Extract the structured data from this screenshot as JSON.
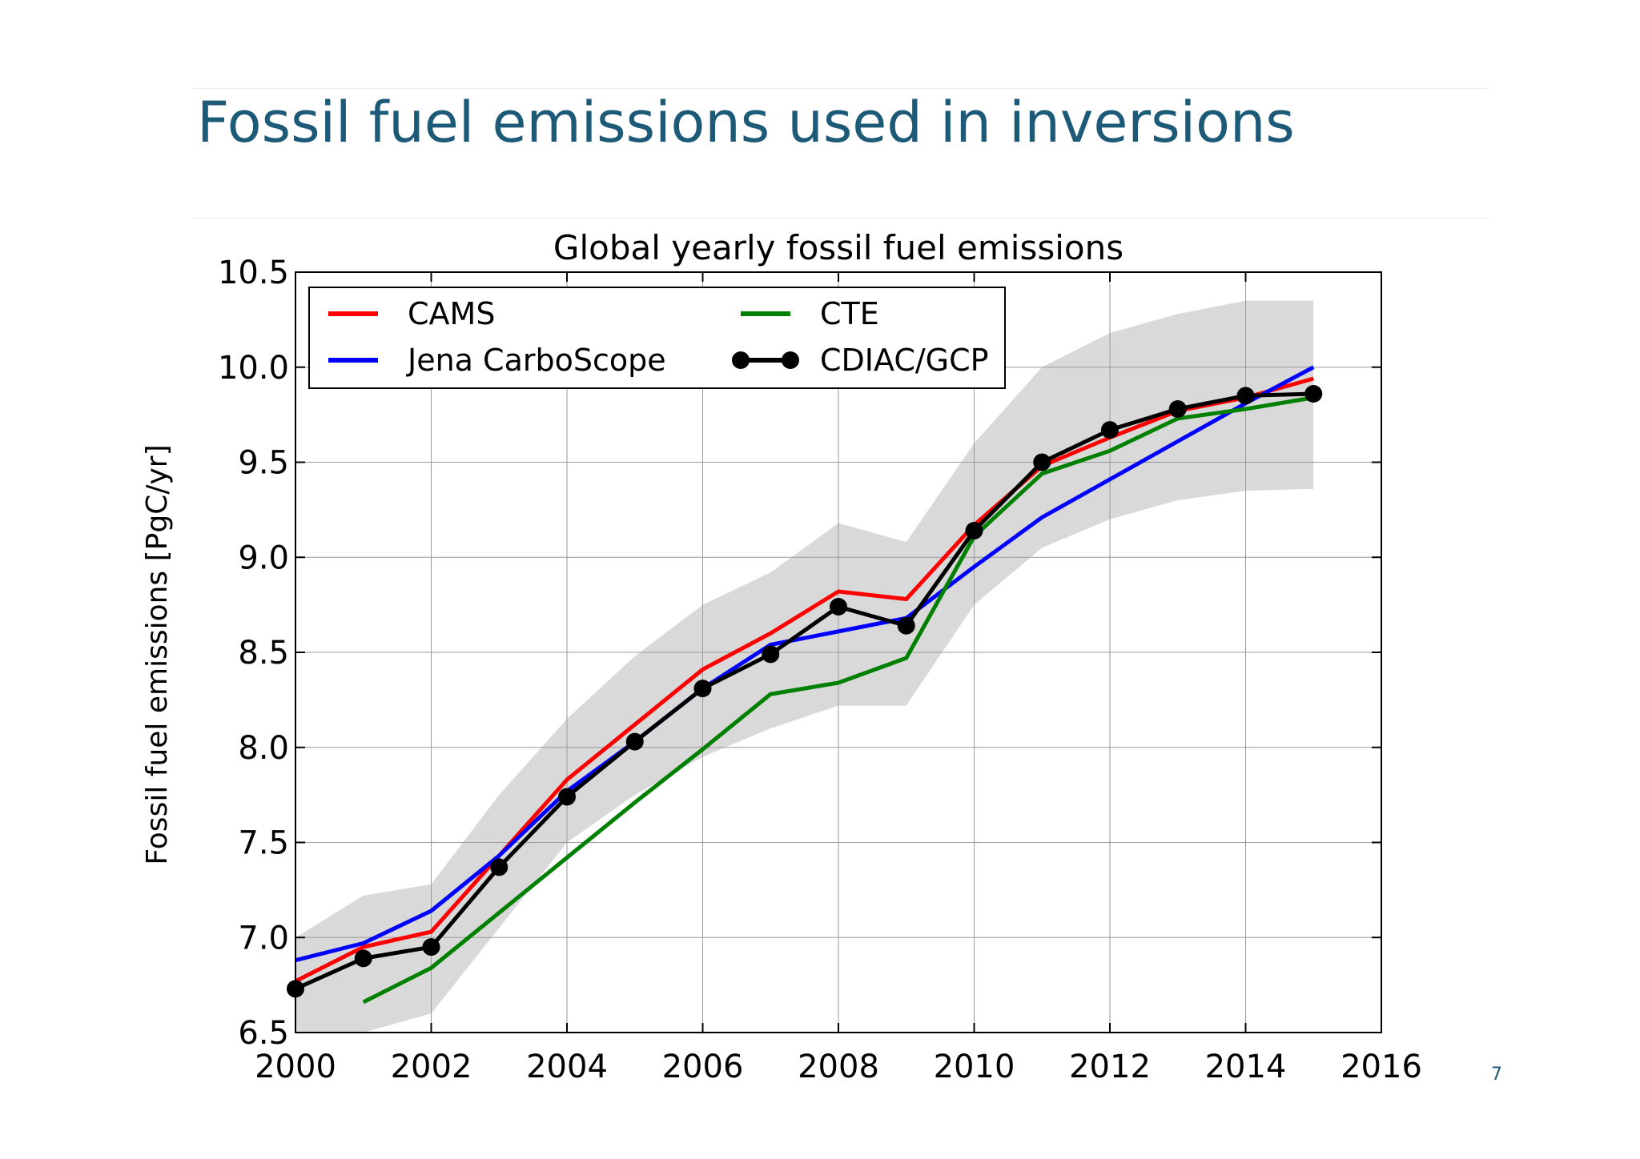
{
  "slide": {
    "title": "Fossil fuel emissions used in inversions",
    "page_number": "7"
  },
  "chart_data": {
    "type": "line",
    "title": "Global yearly fossil fuel emissions",
    "xlabel": "",
    "ylabel": "Fossil fuel emissions [PgC/yr]",
    "xlim": [
      2000,
      2016
    ],
    "ylim": [
      6.5,
      10.5
    ],
    "xticks": [
      2000,
      2002,
      2004,
      2006,
      2008,
      2010,
      2012,
      2014,
      2016
    ],
    "yticks": [
      6.5,
      7.0,
      7.5,
      8.0,
      8.5,
      9.0,
      9.5,
      10.0,
      10.5
    ],
    "ytick_labels": [
      "6.5",
      "7.0",
      "7.5",
      "8.0",
      "8.5",
      "9.0",
      "9.5",
      "10.0",
      "10.5"
    ],
    "grid": true,
    "legend_position": "top-left",
    "uncertainty_band": {
      "color": "#d9d9d9",
      "x": [
        2000,
        2001,
        2002,
        2003,
        2004,
        2005,
        2006,
        2007,
        2008,
        2009,
        2010,
        2011,
        2012,
        2013,
        2014,
        2015
      ],
      "lower": [
        6.5,
        6.5,
        6.6,
        7.05,
        7.5,
        7.75,
        7.95,
        8.1,
        8.22,
        8.22,
        8.75,
        9.05,
        9.2,
        9.3,
        9.35,
        9.36
      ],
      "upper": [
        7.0,
        7.22,
        7.28,
        7.75,
        8.15,
        8.48,
        8.75,
        8.92,
        9.18,
        9.08,
        9.6,
        10.0,
        10.18,
        10.28,
        10.35,
        10.35
      ]
    },
    "series": [
      {
        "name": "CAMS",
        "color": "#ff0000",
        "x": [
          1999.75,
          2000,
          2001,
          2002,
          2003,
          2004,
          2005,
          2006,
          2007,
          2008,
          2009,
          2010,
          2011,
          2012,
          2013,
          2014,
          2015
        ],
        "y": [
          6.72,
          6.77,
          6.95,
          7.03,
          7.43,
          7.83,
          8.12,
          8.41,
          8.6,
          8.82,
          8.78,
          9.17,
          9.48,
          9.63,
          9.77,
          9.84,
          9.94
        ]
      },
      {
        "name": "Jena CarboScope",
        "color": "#0000ff",
        "x": [
          1999.75,
          2000,
          2001,
          2002,
          2003,
          2004,
          2005,
          2006,
          2007,
          2008,
          2009,
          2010,
          2011,
          2012,
          2013,
          2014,
          2015
        ],
        "y": [
          6.83,
          6.88,
          6.97,
          7.14,
          7.43,
          7.77,
          8.03,
          8.31,
          8.54,
          8.61,
          8.68,
          8.95,
          9.21,
          9.41,
          9.61,
          9.81,
          10.0
        ]
      },
      {
        "name": "CTE",
        "color": "#008000",
        "x": [
          2001,
          2002,
          2003,
          2004,
          2005,
          2006,
          2007,
          2008,
          2009,
          2010,
          2011,
          2012,
          2013,
          2014,
          2015
        ],
        "y": [
          6.66,
          6.84,
          7.13,
          7.42,
          7.71,
          7.99,
          8.28,
          8.34,
          8.47,
          9.11,
          9.44,
          9.56,
          9.73,
          9.78,
          9.84
        ]
      },
      {
        "name": "CDIAC/GCP",
        "color": "#000000",
        "markers": true,
        "x": [
          2000,
          2001,
          2002,
          2003,
          2004,
          2005,
          2006,
          2007,
          2008,
          2009,
          2010,
          2011,
          2012,
          2013,
          2014,
          2015
        ],
        "y": [
          6.73,
          6.89,
          6.95,
          7.37,
          7.74,
          8.03,
          8.31,
          8.49,
          8.74,
          8.64,
          9.14,
          9.5,
          9.67,
          9.78,
          9.85,
          9.86
        ],
        "line_start": {
          "x": 1999.75,
          "y": 6.64
        }
      }
    ]
  }
}
